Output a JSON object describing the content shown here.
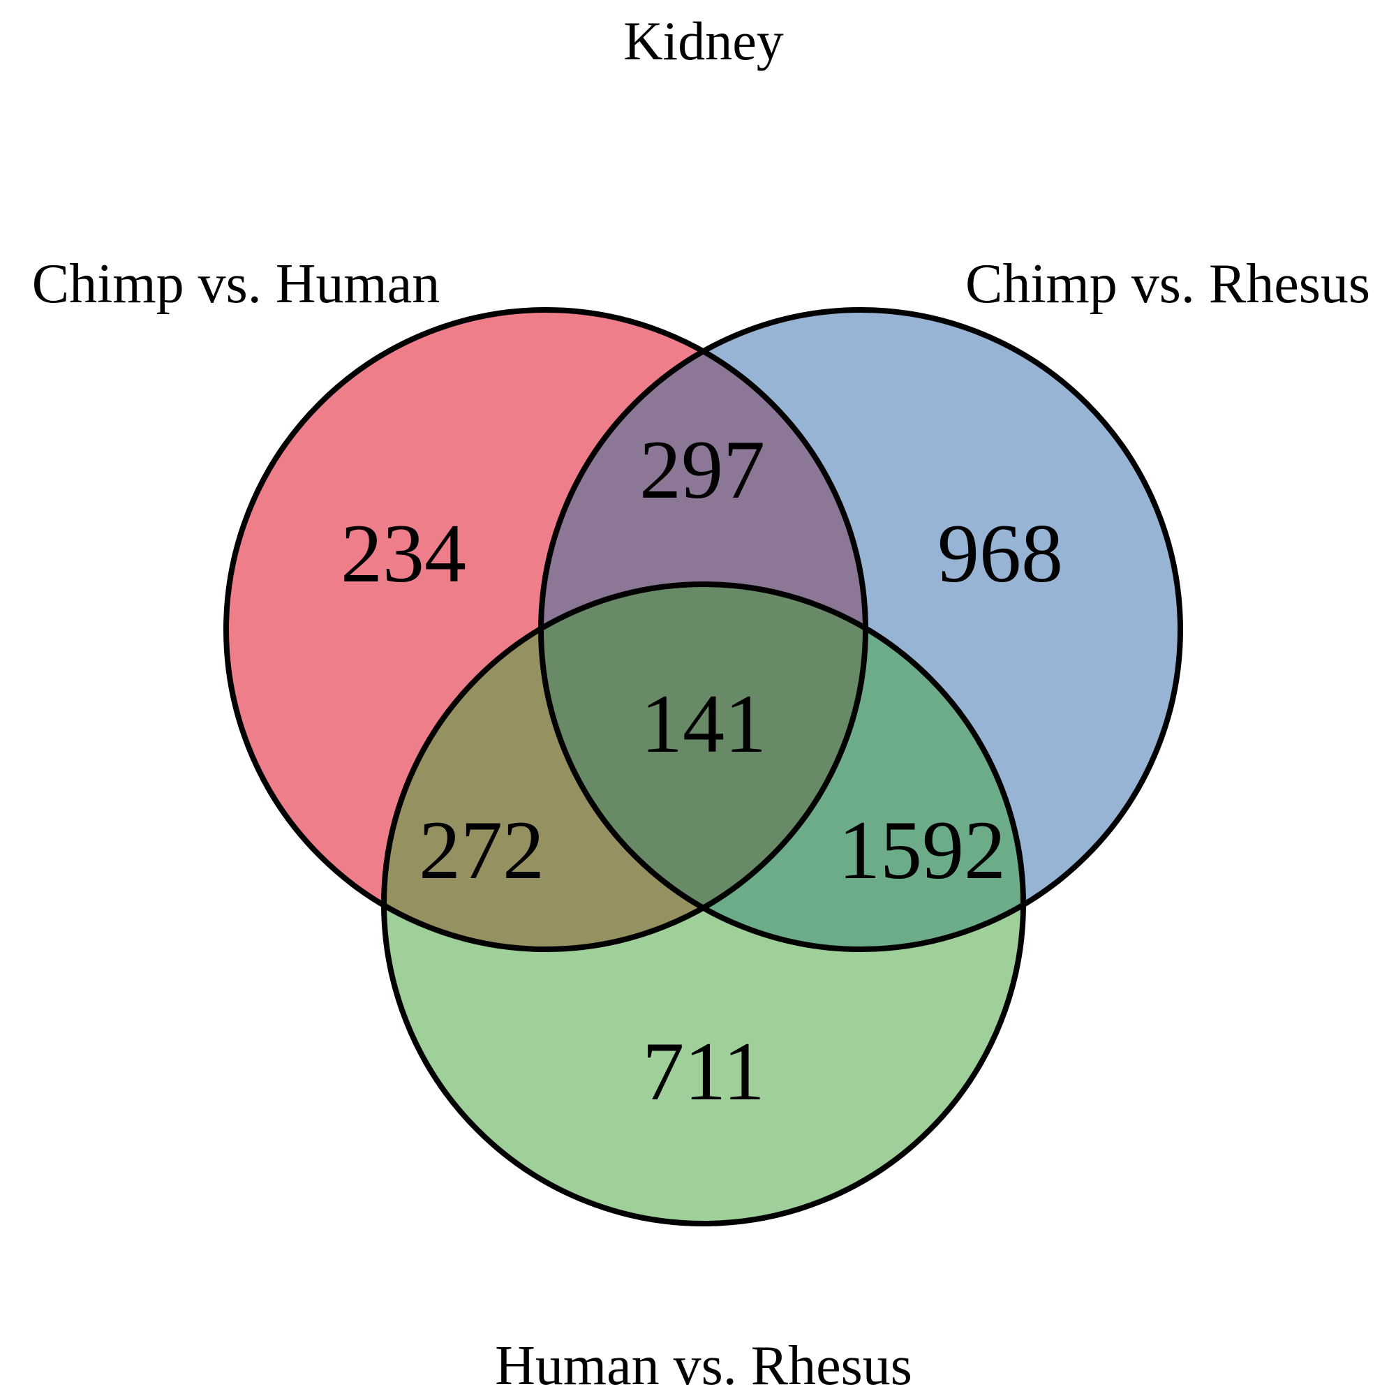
{
  "title": "Kidney",
  "colors": {
    "set_a": "#ee7f8a",
    "set_b": "#97b4d5",
    "set_c": "#a0d09a",
    "a_b": "#8d7797",
    "a_c": "#969161",
    "b_c": "#6cac88",
    "a_b_c": "#698a67",
    "outline": "#000000"
  },
  "sets": [
    {
      "id": "a",
      "label": "Chimp vs. Human"
    },
    {
      "id": "b",
      "label": "Chimp vs. Rhesus"
    },
    {
      "id": "c",
      "label": "Human vs. Rhesus"
    }
  ],
  "regions": {
    "a_only": "234",
    "b_only": "968",
    "c_only": "711",
    "a_b": "297",
    "a_c": "272",
    "b_c": "1592",
    "a_b_c": "141"
  }
}
